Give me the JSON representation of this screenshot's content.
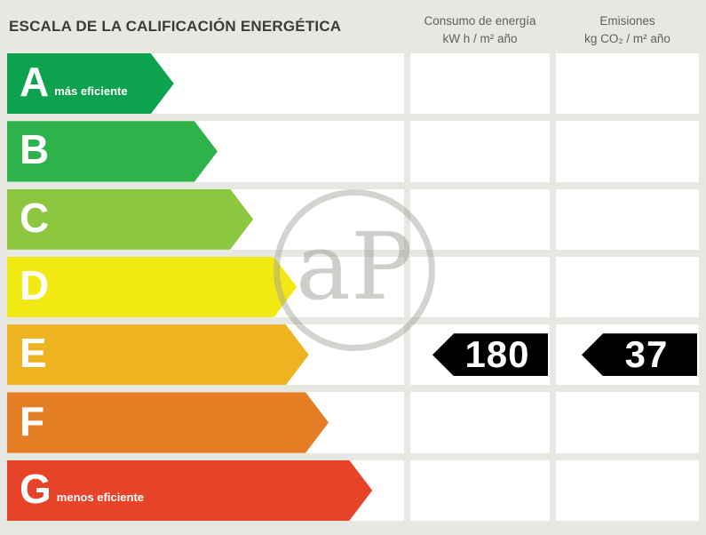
{
  "title": "ESCALA DE LA CALIFICACIÓN ENERGÉTICA",
  "columns": {
    "consumo": {
      "line1": "Consumo de energía",
      "line2": "kW h / m² año"
    },
    "emisiones": {
      "line1": "Emisiones",
      "line2": "kg CO₂ / m² año"
    }
  },
  "scale": {
    "rows": [
      {
        "letter": "A",
        "label": "más eficiente",
        "color": "#0da24e",
        "width_pct": 42
      },
      {
        "letter": "B",
        "color": "#2db34a",
        "width_pct": 53
      },
      {
        "letter": "C",
        "color": "#8dc63f",
        "width_pct": 62
      },
      {
        "letter": "D",
        "color": "#f2e913",
        "width_pct": 73
      },
      {
        "letter": "E",
        "color": "#eeb320",
        "width_pct": 76
      },
      {
        "letter": "F",
        "color": "#e57d25",
        "width_pct": 81
      },
      {
        "letter": "G",
        "label": "menos eficiente",
        "color": "#e64329",
        "width_pct": 92
      }
    ]
  },
  "rating": {
    "letter": "E",
    "consumo": "180",
    "emisiones": "37"
  },
  "watermark": "aP",
  "colors": {
    "background": "#e8e8e2",
    "row_background": "#ffffff",
    "badge_background": "#000000",
    "title_text": "#3b3b3b",
    "header_text": "#5f5f5f"
  },
  "chart_data": {
    "type": "table",
    "title": "ESCALA DE LA CALIFICACIÓN ENERGÉTICA",
    "categories": [
      "A",
      "B",
      "C",
      "D",
      "E",
      "F",
      "G"
    ],
    "columns": [
      "Consumo de energía kW h / m² año",
      "Emisiones kg CO₂ / m² año"
    ],
    "rating_letter": "E",
    "values": {
      "consumo_kwh_m2_ano": 180,
      "emisiones_kgco2_m2_ano": 37
    },
    "scale_labels": {
      "A": "más eficiente",
      "G": "menos eficiente"
    }
  }
}
